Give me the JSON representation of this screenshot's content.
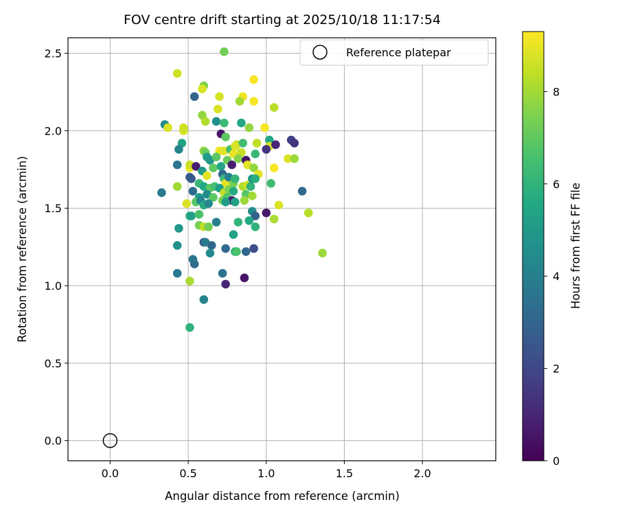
{
  "chart_data": {
    "type": "scatter",
    "title": "FOV centre drift starting at 2025/10/18 11:17:54",
    "xlabel": "Angular distance from reference (arcmin)",
    "ylabel": "Rotation from reference (arcmin)",
    "xlim": [
      -0.27,
      2.47
    ],
    "ylim": [
      -0.13,
      2.6
    ],
    "xticks": [
      0.0,
      0.5,
      1.0,
      1.5,
      2.0
    ],
    "xtick_labels": [
      "0.0",
      "0.5",
      "1.0",
      "1.5",
      "2.0"
    ],
    "yticks": [
      0.0,
      0.5,
      1.0,
      1.5,
      2.0,
      2.5
    ],
    "ytick_labels": [
      "0.0",
      "0.5",
      "1.0",
      "1.5",
      "2.0",
      "2.5"
    ],
    "grid": true,
    "legend": {
      "placement": "top-right",
      "label": "Reference platepar"
    },
    "reference_point": {
      "x": 0.0,
      "y": 0.0
    },
    "colorbar": {
      "label": "Hours from first FF file",
      "min": 0,
      "max": 9.3,
      "ticks": [
        0,
        2,
        4,
        6,
        8
      ],
      "tick_labels": [
        "0",
        "2",
        "4",
        "6",
        "8"
      ],
      "colormap": "viridis"
    },
    "points": [
      {
        "x": 0.43,
        "y": 2.37,
        "c": 8.6
      },
      {
        "x": 0.73,
        "y": 2.51,
        "c": 7.3
      },
      {
        "x": 0.6,
        "y": 2.29,
        "c": 7.5
      },
      {
        "x": 0.59,
        "y": 2.27,
        "c": 8.8
      },
      {
        "x": 0.7,
        "y": 2.22,
        "c": 8.7
      },
      {
        "x": 0.54,
        "y": 2.22,
        "c": 3.0
      },
      {
        "x": 0.85,
        "y": 2.22,
        "c": 9.1
      },
      {
        "x": 0.92,
        "y": 2.33,
        "c": 9.2
      },
      {
        "x": 0.83,
        "y": 2.19,
        "c": 8.0
      },
      {
        "x": 0.92,
        "y": 2.19,
        "c": 9.2
      },
      {
        "x": 1.05,
        "y": 2.15,
        "c": 8.3
      },
      {
        "x": 0.69,
        "y": 2.14,
        "c": 8.8
      },
      {
        "x": 0.59,
        "y": 2.1,
        "c": 7.8
      },
      {
        "x": 0.61,
        "y": 2.06,
        "c": 8.2
      },
      {
        "x": 0.68,
        "y": 2.06,
        "c": 4.6
      },
      {
        "x": 0.73,
        "y": 2.05,
        "c": 6.3
      },
      {
        "x": 0.84,
        "y": 2.05,
        "c": 5.6
      },
      {
        "x": 0.89,
        "y": 2.02,
        "c": 7.8
      },
      {
        "x": 0.99,
        "y": 2.02,
        "c": 9.2
      },
      {
        "x": 0.35,
        "y": 2.04,
        "c": 4.4
      },
      {
        "x": 0.37,
        "y": 2.02,
        "c": 8.8
      },
      {
        "x": 0.47,
        "y": 2.0,
        "c": 8.8
      },
      {
        "x": 0.47,
        "y": 2.02,
        "c": 8.6
      },
      {
        "x": 0.71,
        "y": 1.98,
        "c": 0.6
      },
      {
        "x": 0.74,
        "y": 1.96,
        "c": 7.0
      },
      {
        "x": 0.81,
        "y": 1.91,
        "c": 8.4
      },
      {
        "x": 0.85,
        "y": 1.92,
        "c": 6.4
      },
      {
        "x": 0.94,
        "y": 1.92,
        "c": 8.4
      },
      {
        "x": 1.02,
        "y": 1.94,
        "c": 5.6
      },
      {
        "x": 1.02,
        "y": 1.9,
        "c": 8.7
      },
      {
        "x": 1.06,
        "y": 1.91,
        "c": 1.0
      },
      {
        "x": 1.16,
        "y": 1.94,
        "c": 1.7
      },
      {
        "x": 1.18,
        "y": 1.92,
        "c": 1.4
      },
      {
        "x": 0.46,
        "y": 1.92,
        "c": 5.4
      },
      {
        "x": 0.44,
        "y": 1.88,
        "c": 4.2
      },
      {
        "x": 0.6,
        "y": 1.87,
        "c": 7.8
      },
      {
        "x": 0.61,
        "y": 1.86,
        "c": 7.2
      },
      {
        "x": 0.7,
        "y": 1.87,
        "c": 9.1
      },
      {
        "x": 0.73,
        "y": 1.87,
        "c": 8.9
      },
      {
        "x": 0.77,
        "y": 1.88,
        "c": 6.5
      },
      {
        "x": 0.8,
        "y": 1.9,
        "c": 8.8
      },
      {
        "x": 0.79,
        "y": 1.85,
        "c": 9.0
      },
      {
        "x": 0.84,
        "y": 1.86,
        "c": 8.5
      },
      {
        "x": 0.93,
        "y": 1.85,
        "c": 6.2
      },
      {
        "x": 1.0,
        "y": 1.88,
        "c": 1.4
      },
      {
        "x": 1.14,
        "y": 1.82,
        "c": 8.8
      },
      {
        "x": 1.18,
        "y": 1.82,
        "c": 7.9
      },
      {
        "x": 0.62,
        "y": 1.83,
        "c": 5.2
      },
      {
        "x": 0.64,
        "y": 1.81,
        "c": 4.9
      },
      {
        "x": 0.68,
        "y": 1.83,
        "c": 6.9
      },
      {
        "x": 0.75,
        "y": 1.81,
        "c": 7.2
      },
      {
        "x": 0.78,
        "y": 1.78,
        "c": 0.8
      },
      {
        "x": 0.82,
        "y": 1.82,
        "c": 7.6
      },
      {
        "x": 0.87,
        "y": 1.81,
        "c": 0.5
      },
      {
        "x": 0.88,
        "y": 1.78,
        "c": 8.9
      },
      {
        "x": 0.92,
        "y": 1.76,
        "c": 7.8
      },
      {
        "x": 0.95,
        "y": 1.72,
        "c": 8.9
      },
      {
        "x": 1.05,
        "y": 1.76,
        "c": 9.2
      },
      {
        "x": 0.43,
        "y": 1.78,
        "c": 3.6
      },
      {
        "x": 0.51,
        "y": 1.76,
        "c": 9.1
      },
      {
        "x": 0.51,
        "y": 1.78,
        "c": 8.6
      },
      {
        "x": 0.55,
        "y": 1.77,
        "c": 0.8
      },
      {
        "x": 0.59,
        "y": 1.74,
        "c": 5.0
      },
      {
        "x": 0.62,
        "y": 1.71,
        "c": 8.9
      },
      {
        "x": 0.66,
        "y": 1.76,
        "c": 7.0
      },
      {
        "x": 0.71,
        "y": 1.77,
        "c": 5.5
      },
      {
        "x": 0.72,
        "y": 1.72,
        "c": 3.2
      },
      {
        "x": 0.73,
        "y": 1.69,
        "c": 6.3
      },
      {
        "x": 0.74,
        "y": 1.66,
        "c": 9.0
      },
      {
        "x": 0.76,
        "y": 1.7,
        "c": 4.0
      },
      {
        "x": 0.79,
        "y": 1.66,
        "c": 7.4
      },
      {
        "x": 0.8,
        "y": 1.69,
        "c": 6.1
      },
      {
        "x": 0.85,
        "y": 1.64,
        "c": 8.2
      },
      {
        "x": 0.88,
        "y": 1.65,
        "c": 8.6
      },
      {
        "x": 0.9,
        "y": 1.64,
        "c": 6.0
      },
      {
        "x": 0.91,
        "y": 1.69,
        "c": 4.9
      },
      {
        "x": 0.93,
        "y": 1.69,
        "c": 5.8
      },
      {
        "x": 1.03,
        "y": 1.66,
        "c": 6.4
      },
      {
        "x": 0.51,
        "y": 1.7,
        "c": 2.7
      },
      {
        "x": 0.52,
        "y": 1.69,
        "c": 2.6
      },
      {
        "x": 0.57,
        "y": 1.66,
        "c": 6.2
      },
      {
        "x": 0.6,
        "y": 1.64,
        "c": 5.6
      },
      {
        "x": 0.64,
        "y": 1.63,
        "c": 7.0
      },
      {
        "x": 0.67,
        "y": 1.64,
        "c": 6.5
      },
      {
        "x": 0.7,
        "y": 1.63,
        "c": 5.2
      },
      {
        "x": 0.73,
        "y": 1.6,
        "c": 8.4
      },
      {
        "x": 0.76,
        "y": 1.62,
        "c": 7.5
      },
      {
        "x": 0.79,
        "y": 1.61,
        "c": 5.7
      },
      {
        "x": 0.87,
        "y": 1.59,
        "c": 6.8
      },
      {
        "x": 0.91,
        "y": 1.58,
        "c": 8.0
      },
      {
        "x": 0.33,
        "y": 1.6,
        "c": 3.8
      },
      {
        "x": 0.43,
        "y": 1.64,
        "c": 8.0
      },
      {
        "x": 0.53,
        "y": 1.61,
        "c": 3.3
      },
      {
        "x": 0.57,
        "y": 1.57,
        "c": 5.1
      },
      {
        "x": 0.62,
        "y": 1.59,
        "c": 4.5
      },
      {
        "x": 0.66,
        "y": 1.57,
        "c": 6.9
      },
      {
        "x": 0.72,
        "y": 1.55,
        "c": 7.5
      },
      {
        "x": 0.75,
        "y": 1.57,
        "c": 6.7
      },
      {
        "x": 0.78,
        "y": 1.55,
        "c": 0.8
      },
      {
        "x": 0.8,
        "y": 1.54,
        "c": 5.3
      },
      {
        "x": 0.86,
        "y": 1.55,
        "c": 7.9
      },
      {
        "x": 1.23,
        "y": 1.61,
        "c": 3.2
      },
      {
        "x": 0.49,
        "y": 1.53,
        "c": 8.8
      },
      {
        "x": 0.55,
        "y": 1.54,
        "c": 6.8
      },
      {
        "x": 0.58,
        "y": 1.55,
        "c": 4.2
      },
      {
        "x": 0.6,
        "y": 1.52,
        "c": 5.7
      },
      {
        "x": 0.63,
        "y": 1.53,
        "c": 4.3
      },
      {
        "x": 0.74,
        "y": 1.54,
        "c": 5.1
      },
      {
        "x": 0.91,
        "y": 1.48,
        "c": 4.5
      },
      {
        "x": 1.08,
        "y": 1.52,
        "c": 8.8
      },
      {
        "x": 0.93,
        "y": 1.45,
        "c": 2.9
      },
      {
        "x": 1.0,
        "y": 1.47,
        "c": 0.6
      },
      {
        "x": 1.05,
        "y": 1.43,
        "c": 8.1
      },
      {
        "x": 1.27,
        "y": 1.47,
        "c": 8.3
      },
      {
        "x": 0.51,
        "y": 1.45,
        "c": 6.0
      },
      {
        "x": 0.52,
        "y": 1.45,
        "c": 5.3
      },
      {
        "x": 0.57,
        "y": 1.46,
        "c": 6.6
      },
      {
        "x": 0.57,
        "y": 1.39,
        "c": 7.4
      },
      {
        "x": 0.6,
        "y": 1.38,
        "c": 8.4
      },
      {
        "x": 0.63,
        "y": 1.38,
        "c": 7.3
      },
      {
        "x": 0.68,
        "y": 1.41,
        "c": 4.0
      },
      {
        "x": 0.82,
        "y": 1.41,
        "c": 6.1
      },
      {
        "x": 0.89,
        "y": 1.42,
        "c": 5.6
      },
      {
        "x": 0.93,
        "y": 1.38,
        "c": 6.0
      },
      {
        "x": 0.44,
        "y": 1.37,
        "c": 4.9
      },
      {
        "x": 0.43,
        "y": 1.26,
        "c": 4.7
      },
      {
        "x": 0.6,
        "y": 1.28,
        "c": 2.1
      },
      {
        "x": 0.61,
        "y": 1.28,
        "c": 3.9
      },
      {
        "x": 0.65,
        "y": 1.26,
        "c": 3.1
      },
      {
        "x": 0.74,
        "y": 1.24,
        "c": 3.2
      },
      {
        "x": 0.79,
        "y": 1.33,
        "c": 5.3
      },
      {
        "x": 0.8,
        "y": 1.22,
        "c": 5.9
      },
      {
        "x": 0.81,
        "y": 1.22,
        "c": 6.6
      },
      {
        "x": 0.87,
        "y": 1.22,
        "c": 3.1
      },
      {
        "x": 0.92,
        "y": 1.24,
        "c": 2.2
      },
      {
        "x": 1.36,
        "y": 1.21,
        "c": 7.9
      },
      {
        "x": 0.64,
        "y": 1.21,
        "c": 4.4
      },
      {
        "x": 0.53,
        "y": 1.17,
        "c": 3.6
      },
      {
        "x": 0.54,
        "y": 1.14,
        "c": 3.3
      },
      {
        "x": 0.43,
        "y": 1.08,
        "c": 3.8
      },
      {
        "x": 0.72,
        "y": 1.08,
        "c": 3.5
      },
      {
        "x": 0.51,
        "y": 1.03,
        "c": 8.1
      },
      {
        "x": 0.74,
        "y": 1.01,
        "c": 1.0
      },
      {
        "x": 0.86,
        "y": 1.05,
        "c": 0.5
      },
      {
        "x": 0.6,
        "y": 0.91,
        "c": 4.1
      },
      {
        "x": 0.51,
        "y": 0.73,
        "c": 5.9
      }
    ]
  }
}
